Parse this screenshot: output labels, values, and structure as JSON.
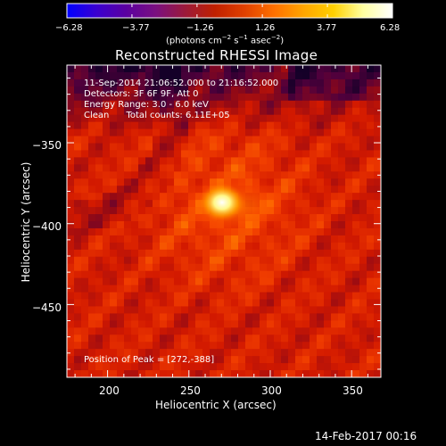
{
  "colorbar": {
    "ticks": [
      "−6.28",
      "−3.77",
      "−1.26",
      "1.26",
      "3.77",
      "6.28"
    ],
    "tick_values": [
      -6.28,
      -3.77,
      -1.26,
      1.26,
      3.77,
      6.28
    ],
    "range": [
      -6.28,
      6.28
    ],
    "unit_prefix": "(photons cm",
    "unit_exp1": "−2",
    "unit_mid": " s",
    "unit_exp2": "−1",
    "unit_mid2": " asec",
    "unit_exp3": "−2",
    "unit_suffix": ")",
    "colormap": [
      "#0000ff",
      "#3a00d0",
      "#5b00a0",
      "#7a1080",
      "#9c1a3a",
      "#c02000",
      "#e04000",
      "#ff7000",
      "#ffa500",
      "#ffd000",
      "#ffffa0",
      "#ffffff"
    ]
  },
  "chart_data": {
    "type": "heatmap",
    "title": "Reconstructed RHESSI Image",
    "xlabel": "Heliocentric X (arcsec)",
    "ylabel": "Heliocentric Y (arcsec)",
    "xlim": [
      175,
      368
    ],
    "ylim": [
      -495,
      -302
    ],
    "x_ticks": [
      200,
      250,
      300,
      350
    ],
    "y_ticks": [
      -350,
      -400,
      -450
    ],
    "x_tick_labels": [
      "200",
      "250",
      "300",
      "350"
    ],
    "y_tick_labels": [
      "−350",
      "−400",
      "−450"
    ],
    "peak": [
      272,
      -388
    ],
    "annotations": [
      "11-Sep-2014 21:06:52.000 to 21:16:52.000",
      "Detectors: 3F 6F 9F, Att 0",
      "Energy Range: 3.0 - 6.0 keV",
      "Clean      Total counts: 6.11E+05",
      "Position of Peak = [272,-388]"
    ]
  },
  "footer": {
    "timestamp": "14-Feb-2017 00:16"
  }
}
